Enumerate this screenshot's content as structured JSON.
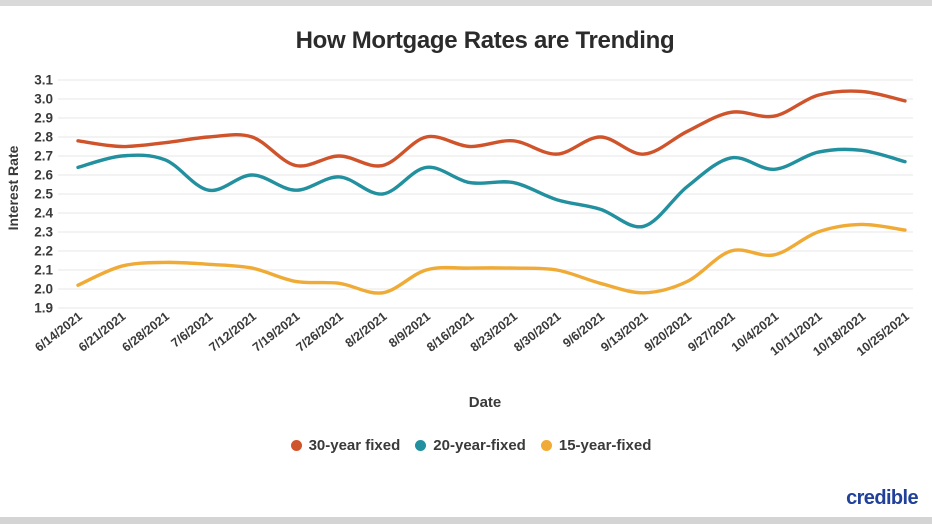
{
  "page": {
    "title": "How Mortgage Rates are Trending",
    "branding": {
      "logo_text": "credible",
      "logo_color": "#21409a"
    }
  },
  "chart_data": {
    "type": "line",
    "title": "How Mortgage Rates are Trending",
    "xlabel": "Date",
    "ylabel": "Interest Rate",
    "ylim": [
      1.9,
      3.1
    ],
    "ytick_step": 0.1,
    "grid": true,
    "legend_position": "bottom",
    "grid_color": "#e7e7e7",
    "x": [
      "6/14/2021",
      "6/21/2021",
      "6/28/2021",
      "7/6/2021",
      "7/12/2021",
      "7/19/2021",
      "7/26/2021",
      "8/2/2021",
      "8/9/2021",
      "8/16/2021",
      "8/23/2021",
      "8/30/2021",
      "9/6/2021",
      "9/13/2021",
      "9/20/2021",
      "9/27/2021",
      "10/4/2021",
      "10/11/2021",
      "10/18/2021",
      "10/25/2021"
    ],
    "series": [
      {
        "name": "30-year fixed",
        "color": "#d0542b",
        "values": [
          2.78,
          2.75,
          2.77,
          2.8,
          2.8,
          2.65,
          2.7,
          2.65,
          2.8,
          2.75,
          2.78,
          2.71,
          2.8,
          2.71,
          2.83,
          2.93,
          2.91,
          3.02,
          3.04,
          2.99
        ]
      },
      {
        "name": "20-year-fixed",
        "color": "#22909e",
        "values": [
          2.64,
          2.7,
          2.68,
          2.52,
          2.6,
          2.52,
          2.59,
          2.5,
          2.64,
          2.56,
          2.56,
          2.47,
          2.42,
          2.33,
          2.54,
          2.69,
          2.63,
          2.72,
          2.73,
          2.67
        ]
      },
      {
        "name": "15-year-fixed",
        "color": "#efab36",
        "values": [
          2.02,
          2.12,
          2.14,
          2.13,
          2.11,
          2.04,
          2.03,
          1.98,
          2.1,
          2.11,
          2.11,
          2.1,
          2.03,
          1.98,
          2.04,
          2.2,
          2.18,
          2.3,
          2.34,
          2.31
        ]
      }
    ]
  }
}
